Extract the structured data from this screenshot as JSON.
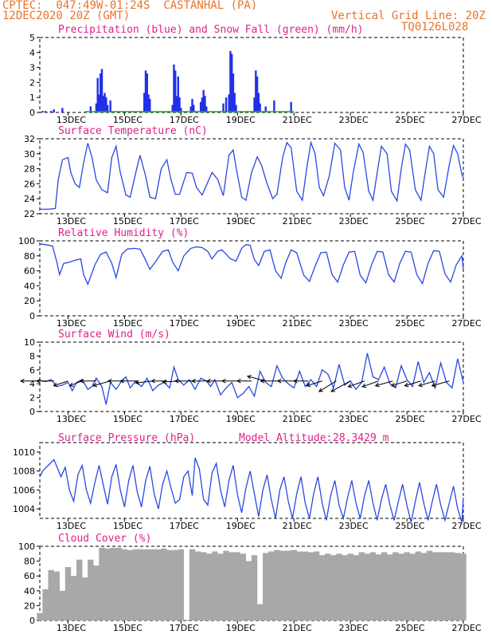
{
  "header": {
    "line1": "CPTEC:  047:49W-01:24S  CASTANHAL (PA)",
    "line2": "12DEC2020 20Z (GMT)",
    "grid_note": "Vertical Grid Line: 20Z",
    "code": "TQ0126L028"
  },
  "colors": {
    "header": "#e8742a",
    "title": "#e0208a",
    "line": "#2a48e0",
    "precip": "#2030e8",
    "snow": "#20b020",
    "cloud": "#a8a8a8"
  },
  "chart_data": [
    {
      "type": "bar",
      "title": "Precipitation (blue) and Snow Fall (green) (mm/h)",
      "ylim": [
        0,
        5
      ],
      "yticks": [
        0,
        1,
        2,
        3,
        4,
        5
      ],
      "xticks": [
        "13DEC",
        "15DEC",
        "17DEC",
        "19DEC",
        "21DEC",
        "23DEC",
        "25DEC",
        "27DEC"
      ],
      "series": [
        {
          "name": "Precipitation",
          "x": [
            12.1,
            12.2,
            12.4,
            12.5,
            12.8,
            13.8,
            14.0,
            14.05,
            14.1,
            14.15,
            14.2,
            14.25,
            14.3,
            14.35,
            14.4,
            14.5,
            15.7,
            15.75,
            15.8,
            15.85,
            15.9,
            16.7,
            16.75,
            16.8,
            16.85,
            16.9,
            16.95,
            17.0,
            17.35,
            17.4,
            17.45,
            17.7,
            17.75,
            17.8,
            17.85,
            17.9,
            18.5,
            18.6,
            18.7,
            18.75,
            18.8,
            18.85,
            18.9,
            18.95,
            19.6,
            19.65,
            19.7,
            19.75,
            19.8,
            20.0,
            20.3,
            20.9
          ],
          "values": [
            0.1,
            0.1,
            0.1,
            0.2,
            0.3,
            0.4,
            0.6,
            2.3,
            1.2,
            2.6,
            2.9,
            1.1,
            1.3,
            1.0,
            0.5,
            0.8,
            1.3,
            2.8,
            2.6,
            1.2,
            0.9,
            0.5,
            3.2,
            2.8,
            1.1,
            2.4,
            1.0,
            0.3,
            0.4,
            0.9,
            0.5,
            0.7,
            1.0,
            1.5,
            1.1,
            0.4,
            0.6,
            1.0,
            1.2,
            4.1,
            3.9,
            2.6,
            1.3,
            0.5,
            1.0,
            2.8,
            2.4,
            1.3,
            0.6,
            0.4,
            0.8,
            0.7
          ]
        },
        {
          "name": "Snow Fall",
          "x": [],
          "values": []
        }
      ]
    },
    {
      "type": "line",
      "title": "Surface Temperature (nC)",
      "ylim": [
        22,
        32
      ],
      "yticks": [
        22,
        24,
        26,
        28,
        30,
        32
      ],
      "xticks": [
        "13DEC",
        "15DEC",
        "17DEC",
        "19DEC",
        "21DEC",
        "23DEC",
        "25DEC",
        "27DEC"
      ],
      "x": [
        12.0,
        12.3,
        12.55,
        12.65,
        12.8,
        13.0,
        13.1,
        13.25,
        13.4,
        13.55,
        13.7,
        13.85,
        14.0,
        14.2,
        14.4,
        14.55,
        14.7,
        14.85,
        15.05,
        15.2,
        15.4,
        15.55,
        15.75,
        15.9,
        16.1,
        16.3,
        16.5,
        16.65,
        16.8,
        16.95,
        17.2,
        17.4,
        17.55,
        17.75,
        17.9,
        18.1,
        18.3,
        18.5,
        18.7,
        18.85,
        18.95,
        19.15,
        19.3,
        19.5,
        19.7,
        19.85,
        20.05,
        20.25,
        20.4,
        20.6,
        20.75,
        20.9,
        21.1,
        21.3,
        21.45,
        21.6,
        21.75,
        21.9,
        22.05,
        22.25,
        22.45,
        22.65,
        22.8,
        22.95,
        23.1,
        23.3,
        23.45,
        23.65,
        23.8,
        23.95,
        24.1,
        24.3,
        24.45,
        24.65,
        24.8,
        24.95,
        25.1,
        25.3,
        25.5,
        25.65,
        25.8,
        25.95,
        26.1,
        26.3,
        26.5,
        26.65,
        26.8,
        26.95,
        27.0
      ],
      "values": [
        22.6,
        22.6,
        22.7,
        26.5,
        29.2,
        29.5,
        27.5,
        26.0,
        25.5,
        28.8,
        31.4,
        29.5,
        26.5,
        25.2,
        24.8,
        29.5,
        31.0,
        27.5,
        24.5,
        24.2,
        27.5,
        29.8,
        27.0,
        24.2,
        24.0,
        28.0,
        29.2,
        26.5,
        24.6,
        24.6,
        27.5,
        27.4,
        25.5,
        24.5,
        25.8,
        27.5,
        26.6,
        24.4,
        29.8,
        30.5,
        28.2,
        24.2,
        23.8,
        27.5,
        29.6,
        28.5,
        26.0,
        24.0,
        24.6,
        29.5,
        31.5,
        30.8,
        25.0,
        23.8,
        28.0,
        31.5,
        30.0,
        25.5,
        24.4,
        27.0,
        31.4,
        30.5,
        25.5,
        23.8,
        27.5,
        31.3,
        30.2,
        25.0,
        23.8,
        27.5,
        31.0,
        30.0,
        25.0,
        23.7,
        28.0,
        31.3,
        30.5,
        25.2,
        23.8,
        27.5,
        31.0,
        30.0,
        25.2,
        24.2,
        28.5,
        31.1,
        30.0,
        27.2,
        26.8
      ]
    },
    {
      "type": "line",
      "title": "Relative Humidity (%)",
      "ylim": [
        0,
        100
      ],
      "yticks": [
        0,
        20,
        40,
        60,
        80,
        100
      ],
      "xticks": [
        "13DEC",
        "15DEC",
        "17DEC",
        "19DEC",
        "21DEC",
        "23DEC",
        "25DEC",
        "27DEC"
      ],
      "x": [
        12.0,
        12.2,
        12.45,
        12.6,
        12.7,
        12.85,
        13.0,
        13.25,
        13.45,
        13.55,
        13.7,
        13.95,
        14.15,
        14.35,
        14.55,
        14.7,
        14.9,
        15.1,
        15.35,
        15.55,
        15.7,
        15.9,
        16.15,
        16.35,
        16.55,
        16.7,
        16.9,
        17.1,
        17.35,
        17.55,
        17.75,
        17.95,
        18.1,
        18.3,
        18.45,
        18.6,
        18.75,
        18.95,
        19.15,
        19.3,
        19.45,
        19.6,
        19.75,
        19.95,
        20.15,
        20.35,
        20.55,
        20.7,
        20.9,
        21.1,
        21.35,
        21.55,
        21.75,
        21.95,
        22.15,
        22.35,
        22.55,
        22.75,
        22.95,
        23.15,
        23.35,
        23.55,
        23.75,
        23.95,
        24.15,
        24.35,
        24.55,
        24.75,
        24.95,
        25.15,
        25.35,
        25.55,
        25.75,
        25.95,
        26.15,
        26.35,
        26.55,
        26.75,
        26.95,
        27.0
      ],
      "values": [
        96,
        95,
        93,
        72,
        55,
        70,
        71,
        74,
        76,
        55,
        42,
        68,
        82,
        85,
        70,
        51,
        82,
        89,
        90,
        89,
        78,
        62,
        75,
        86,
        88,
        72,
        60,
        80,
        90,
        92,
        91,
        86,
        76,
        86,
        88,
        82,
        76,
        73,
        90,
        95,
        94,
        75,
        67,
        86,
        88,
        60,
        50,
        70,
        88,
        84,
        54,
        46,
        66,
        84,
        85,
        55,
        45,
        68,
        85,
        86,
        54,
        44,
        68,
        86,
        85,
        55,
        45,
        70,
        86,
        85,
        55,
        43,
        70,
        87,
        86,
        56,
        45,
        68,
        80,
        62
      ]
    },
    {
      "type": "line",
      "title": "Surface Wind (m/s)",
      "ylim": [
        0,
        10
      ],
      "yticks": [
        0,
        2,
        4,
        6,
        8,
        10
      ],
      "xticks": [
        "13DEC",
        "15DEC",
        "17DEC",
        "19DEC",
        "21DEC",
        "23DEC",
        "25DEC",
        "27DEC"
      ],
      "x": [
        12.0,
        12.2,
        12.4,
        12.6,
        12.8,
        13.0,
        13.15,
        13.3,
        13.5,
        13.7,
        13.85,
        14.0,
        14.2,
        14.35,
        14.5,
        14.7,
        14.9,
        15.05,
        15.2,
        15.4,
        15.6,
        15.8,
        16.0,
        16.2,
        16.4,
        16.6,
        16.75,
        16.9,
        17.1,
        17.3,
        17.5,
        17.7,
        17.9,
        18.05,
        18.2,
        18.4,
        18.6,
        18.8,
        19.0,
        19.2,
        19.4,
        19.6,
        19.8,
        20.0,
        20.2,
        20.4,
        20.6,
        20.8,
        21.0,
        21.2,
        21.4,
        21.6,
        21.8,
        22.0,
        22.2,
        22.4,
        22.6,
        22.8,
        23.0,
        23.2,
        23.4,
        23.6,
        23.8,
        24.0,
        24.2,
        24.4,
        24.6,
        24.8,
        25.0,
        25.2,
        25.4,
        25.6,
        25.8,
        26.0,
        26.2,
        26.4,
        26.6,
        26.8,
        27.0
      ],
      "values": [
        4.5,
        4.3,
        4.6,
        3.6,
        3.8,
        4.2,
        3.0,
        4.2,
        4.6,
        3.2,
        3.6,
        4.8,
        3.6,
        1.0,
        4.2,
        3.2,
        4.4,
        5.0,
        3.4,
        4.4,
        3.6,
        4.8,
        3.0,
        3.8,
        4.2,
        3.4,
        6.4,
        4.6,
        3.8,
        4.6,
        3.2,
        4.8,
        4.4,
        3.6,
        4.6,
        2.4,
        3.4,
        4.2,
        2.0,
        2.6,
        3.6,
        2.2,
        5.8,
        4.2,
        3.6,
        6.6,
        4.8,
        4.0,
        3.4,
        5.8,
        3.6,
        4.6,
        3.6,
        6.0,
        5.4,
        3.4,
        6.8,
        3.8,
        4.4,
        3.2,
        4.2,
        8.4,
        5.0,
        4.6,
        6.4,
        4.0,
        3.4,
        6.6,
        4.6,
        3.6,
        7.2,
        4.2,
        5.6,
        3.4,
        7.0,
        4.2,
        3.4,
        7.6,
        4.2
      ],
      "wind_barbs": {
        "x": [
          12.0,
          12.5,
          13.0,
          13.5,
          14.0,
          14.5,
          15.0,
          15.5,
          16.0,
          16.5,
          17.0,
          17.5,
          18.0,
          18.5,
          19.0,
          19.5,
          20.0,
          20.5,
          21.0,
          21.5,
          22.0,
          22.5,
          23.0,
          23.5,
          24.0,
          24.5,
          25.0,
          25.5,
          26.0,
          26.5
        ],
        "u": [
          -4.0,
          -3.6,
          -3.0,
          -2.6,
          -3.4,
          -3.6,
          -3.4,
          -3.8,
          -3.6,
          -3.2,
          -3.8,
          -4.2,
          -3.6,
          -3.4,
          -3.2,
          -3.0,
          -3.8,
          -4.0,
          -3.4,
          -3.0,
          -3.2,
          -3.6,
          -4.0,
          -3.4,
          -3.4,
          -3.6,
          -3.2,
          -3.4,
          -3.4,
          -3.6
        ],
        "v": [
          0.0,
          0.0,
          -1.0,
          -1.0,
          0.0,
          -1.0,
          0.0,
          0.0,
          -0.4,
          0.0,
          -0.2,
          0.0,
          0.0,
          0.0,
          0.0,
          0.0,
          1.0,
          0.0,
          0.0,
          0.0,
          -1.0,
          -2.2,
          -2.2,
          -1.2,
          -1.2,
          -1.0,
          -1.0,
          -1.0,
          -1.0,
          -1.0
        ]
      }
    },
    {
      "type": "line",
      "title": "Surface Pressure (hPa)",
      "annotation_label": "Model Altitude:",
      "annotation_value": "28.3429 m",
      "ylim": [
        1003,
        1011
      ],
      "yticks": [
        1004,
        1006,
        1008,
        1010
      ],
      "xticks": [
        "13DEC",
        "15DEC",
        "17DEC",
        "19DEC",
        "21DEC",
        "23DEC",
        "25DEC",
        "27DEC"
      ],
      "x": [
        12.0,
        12.1,
        12.3,
        12.5,
        12.6,
        12.75,
        12.9,
        13.05,
        13.2,
        13.35,
        13.5,
        13.65,
        13.8,
        13.95,
        14.1,
        14.25,
        14.4,
        14.55,
        14.7,
        14.85,
        15.0,
        15.15,
        15.3,
        15.45,
        15.6,
        15.75,
        15.9,
        16.05,
        16.2,
        16.35,
        16.5,
        16.65,
        16.8,
        16.95,
        17.1,
        17.25,
        17.4,
        17.5,
        17.65,
        17.8,
        17.95,
        18.1,
        18.25,
        18.4,
        18.55,
        18.7,
        18.85,
        19.0,
        19.15,
        19.3,
        19.45,
        19.6,
        19.75,
        19.9,
        20.05,
        20.2,
        20.35,
        20.5,
        20.65,
        20.8,
        20.95,
        21.1,
        21.25,
        21.4,
        21.55,
        21.7,
        21.85,
        22.0,
        22.15,
        22.3,
        22.45,
        22.6,
        22.75,
        22.9,
        23.05,
        23.2,
        23.35,
        23.5,
        23.65,
        23.8,
        23.95,
        24.1,
        24.25,
        24.4,
        24.55,
        24.7,
        24.85,
        25.0,
        25.15,
        25.3,
        25.45,
        25.6,
        25.75,
        25.9,
        26.05,
        26.2,
        26.35,
        26.5,
        26.65,
        26.8,
        26.95,
        27.0
      ],
      "values": [
        1007.4,
        1008.0,
        1008.6,
        1009.2,
        1008.5,
        1007.4,
        1008.4,
        1006.0,
        1004.8,
        1007.6,
        1008.6,
        1006.0,
        1004.6,
        1006.8,
        1008.6,
        1006.5,
        1004.5,
        1007.4,
        1008.7,
        1006.0,
        1004.2,
        1007.0,
        1008.6,
        1005.8,
        1004.2,
        1007.0,
        1008.5,
        1005.6,
        1004.0,
        1006.6,
        1008.0,
        1006.2,
        1004.6,
        1005.0,
        1007.4,
        1008.0,
        1005.4,
        1009.4,
        1008.2,
        1005.0,
        1004.4,
        1007.8,
        1008.8,
        1006.0,
        1004.2,
        1007.0,
        1008.6,
        1005.5,
        1003.6,
        1006.2,
        1008.0,
        1005.6,
        1003.2,
        1006.0,
        1007.6,
        1005.0,
        1003.0,
        1006.0,
        1007.4,
        1004.8,
        1003.0,
        1005.6,
        1007.4,
        1004.6,
        1003.0,
        1005.6,
        1007.4,
        1004.6,
        1002.8,
        1005.4,
        1007.0,
        1004.4,
        1003.0,
        1005.2,
        1007.0,
        1004.6,
        1003.0,
        1005.4,
        1007.0,
        1004.6,
        1002.8,
        1005.0,
        1006.6,
        1004.4,
        1002.8,
        1004.8,
        1006.6,
        1004.4,
        1002.6,
        1004.8,
        1006.8,
        1004.6,
        1002.8,
        1004.8,
        1006.6,
        1004.4,
        1002.8,
        1004.6,
        1006.4,
        1004.0,
        1002.6,
        1005.2
      ]
    },
    {
      "type": "bar",
      "title": "Cloud Cover (%)",
      "ylim": [
        0,
        100
      ],
      "yticks": [
        0,
        20,
        40,
        60,
        80,
        100
      ],
      "xticks": [
        "13DEC",
        "15DEC",
        "17DEC",
        "19DEC",
        "21DEC",
        "23DEC",
        "25DEC",
        "27DEC"
      ],
      "x": [
        12.0,
        12.2,
        12.4,
        12.6,
        12.8,
        13.0,
        13.2,
        13.4,
        13.6,
        13.8,
        14.0,
        14.2,
        14.4,
        14.6,
        14.8,
        15.0,
        15.2,
        15.4,
        15.6,
        15.8,
        16.0,
        16.2,
        16.4,
        16.6,
        16.8,
        17.0,
        17.2,
        17.4,
        17.6,
        17.8,
        18.0,
        18.2,
        18.4,
        18.6,
        18.8,
        19.0,
        19.2,
        19.4,
        19.6,
        19.8,
        20.0,
        20.2,
        20.4,
        20.6,
        20.8,
        21.0,
        21.2,
        21.4,
        21.6,
        21.8,
        22.0,
        22.2,
        22.4,
        22.6,
        22.8,
        23.0,
        23.2,
        23.4,
        23.6,
        23.8,
        24.0,
        24.2,
        24.4,
        24.6,
        24.8,
        25.0,
        25.2,
        25.4,
        25.6,
        25.8,
        26.0,
        26.2,
        26.4,
        26.6,
        26.8,
        27.0
      ],
      "values": [
        10,
        42,
        68,
        66,
        40,
        72,
        60,
        82,
        58,
        82,
        74,
        98,
        97,
        98,
        98,
        96,
        95,
        96,
        96,
        96,
        96,
        96,
        97,
        95,
        95,
        96,
        1,
        96,
        93,
        92,
        90,
        93,
        90,
        94,
        92,
        92,
        90,
        80,
        88,
        22,
        91,
        93,
        95,
        94,
        94,
        95,
        93,
        93,
        92,
        93,
        88,
        90,
        88,
        90,
        88,
        90,
        88,
        92,
        90,
        92,
        89,
        92,
        89,
        92,
        90,
        92,
        90,
        93,
        91,
        94,
        92,
        92,
        92,
        92,
        91,
        90
      ]
    }
  ]
}
